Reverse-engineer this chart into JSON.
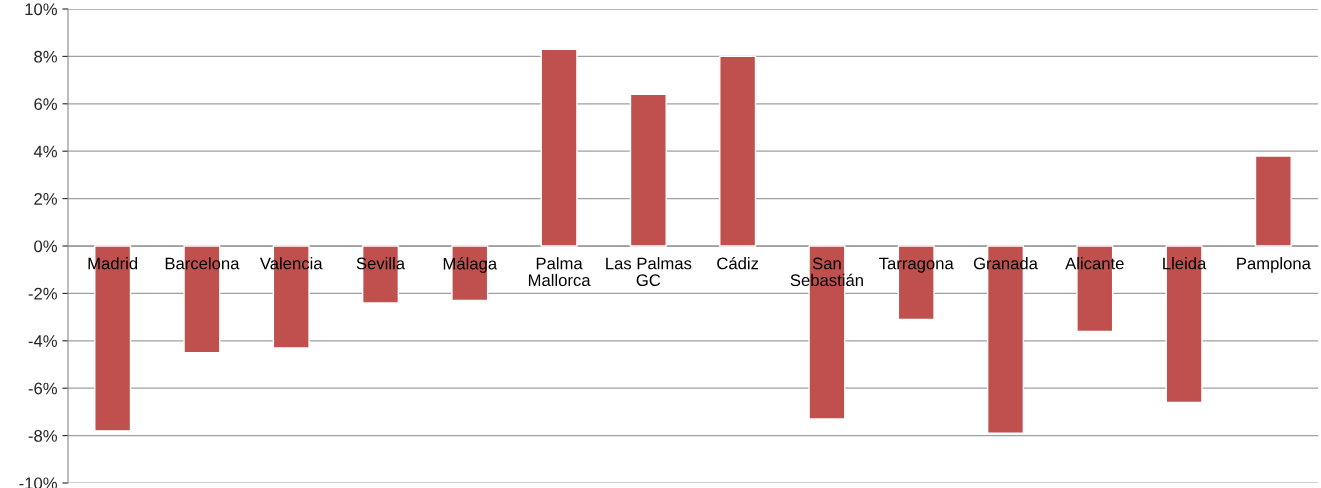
{
  "chart_data": {
    "type": "bar",
    "categories": [
      "Madrid",
      "Barcelona",
      "Valencia",
      "Sevilla",
      "Málaga",
      "Palma\nMallorca",
      "Las Palmas\nGC",
      "Cádiz",
      "San\nSebastián",
      "Tarragona",
      "Granada",
      "Alicante",
      "Lleida",
      "Pamplona"
    ],
    "values": [
      -7.8,
      -4.5,
      -4.3,
      -2.4,
      -2.3,
      8.3,
      6.4,
      8.0,
      -7.3,
      -3.1,
      -7.9,
      -3.6,
      -6.6,
      3.8
    ],
    "color": "#c0504d",
    "ylim": [
      -10,
      10
    ],
    "yticks": [
      {
        "value": -10,
        "label": "-10%"
      },
      {
        "value": -8,
        "label": "-8%"
      },
      {
        "value": -6,
        "label": "-6%"
      },
      {
        "value": -4,
        "label": "-4%"
      },
      {
        "value": -2,
        "label": "-2%"
      },
      {
        "value": 0,
        "label": "0%"
      },
      {
        "value": 2,
        "label": "2%"
      },
      {
        "value": 4,
        "label": "4%"
      },
      {
        "value": 6,
        "label": "6%"
      },
      {
        "value": 8,
        "label": "8%"
      },
      {
        "value": 10,
        "label": "10%"
      }
    ],
    "grid": "y",
    "legend": false
  }
}
